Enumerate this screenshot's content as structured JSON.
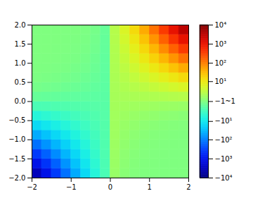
{
  "chart_data": {
    "type": "heatmap",
    "x": [
      -1.875,
      -1.625,
      -1.375,
      -1.125,
      -0.875,
      -0.625,
      -0.375,
      -0.125,
      0.125,
      0.375,
      0.625,
      0.875,
      1.125,
      1.375,
      1.625,
      1.875
    ],
    "y": [
      -1.875,
      -1.625,
      -1.375,
      -1.125,
      -0.875,
      -0.625,
      -0.375,
      -0.125,
      0.125,
      0.375,
      0.625,
      0.875,
      1.125,
      1.375,
      1.625,
      1.875
    ],
    "values": [
      [
        -3280,
        -1110,
        -378,
        -129,
        -43.7,
        -14.9,
        -5.05,
        -1.72,
        0.58,
        0.2,
        0.067,
        0.023,
        0.0078,
        0.0026,
        0.0009,
        0.0003
      ],
      [
        -1110,
        -437,
        -171,
        -67.3,
        -26.4,
        -10.4,
        -4.07,
        -1.6,
        0.63,
        0.25,
        0.096,
        0.038,
        0.015,
        0.0058,
        0.0023,
        0.0009
      ],
      [
        -378,
        -171,
        -77.8,
        -35.2,
        -16,
        -7.23,
        -3.28,
        -1.49,
        0.67,
        0.3,
        0.14,
        0.063,
        0.028,
        0.013,
        0.0058,
        0.0026
      ],
      [
        -129,
        -67.3,
        -35.2,
        -18.4,
        -9.65,
        -5.05,
        -2.64,
        -1.38,
        0.72,
        0.38,
        0.2,
        0.1,
        0.054,
        0.028,
        0.015,
        0.0078
      ],
      [
        -43.7,
        -26.4,
        -16,
        -9.65,
        -5.83,
        -3.52,
        -2.13,
        -1.29,
        0.78,
        0.47,
        0.28,
        0.17,
        0.1,
        0.063,
        0.038,
        0.023
      ],
      [
        -14.9,
        -10.4,
        -7.23,
        -5.05,
        -3.52,
        -2.46,
        -1.72,
        -1.2,
        0.83,
        0.58,
        0.41,
        0.28,
        0.2,
        0.14,
        0.096,
        0.067
      ],
      [
        -5.05,
        -4.07,
        -3.28,
        -2.64,
        -2.13,
        -1.72,
        -1.38,
        -1.11,
        0.9,
        0.72,
        0.58,
        0.47,
        0.38,
        0.3,
        0.25,
        0.2
      ],
      [
        -1.72,
        -1.6,
        -1.49,
        -1.38,
        -1.29,
        -1.2,
        -1.11,
        -1.04,
        0.96,
        0.9,
        0.83,
        0.78,
        0.72,
        0.67,
        0.63,
        0.58
      ],
      [
        -0.58,
        -0.63,
        -0.67,
        -0.72,
        -0.78,
        -0.83,
        -0.9,
        -0.96,
        1.04,
        1.11,
        1.2,
        1.29,
        1.38,
        1.49,
        1.6,
        1.72
      ],
      [
        -0.2,
        -0.25,
        -0.3,
        -0.38,
        -0.47,
        -0.58,
        -0.72,
        -0.9,
        1.11,
        1.38,
        1.72,
        2.13,
        2.64,
        3.28,
        4.07,
        5.05
      ],
      [
        -0.067,
        -0.096,
        -0.14,
        -0.2,
        -0.28,
        -0.41,
        -0.58,
        -0.83,
        1.2,
        1.72,
        2.46,
        3.52,
        5.05,
        7.23,
        10.4,
        14.9
      ],
      [
        -0.023,
        -0.038,
        -0.063,
        -0.1,
        -0.17,
        -0.28,
        -0.47,
        -0.78,
        1.29,
        2.13,
        3.52,
        5.83,
        9.65,
        16,
        26.4,
        43.7
      ],
      [
        -0.0078,
        -0.015,
        -0.028,
        -0.054,
        -0.1,
        -0.2,
        -0.38,
        -0.72,
        1.38,
        2.64,
        5.05,
        9.65,
        18.4,
        35.2,
        67.3,
        129
      ],
      [
        -0.0026,
        -0.0058,
        -0.013,
        -0.028,
        -0.063,
        -0.14,
        -0.3,
        -0.67,
        1.49,
        3.28,
        7.23,
        16,
        35.2,
        77.8,
        171,
        378
      ],
      [
        -0.0009,
        -0.0023,
        -0.0058,
        -0.015,
        -0.038,
        -0.096,
        -0.25,
        -0.63,
        1.6,
        4.07,
        10.4,
        26.4,
        67.3,
        171,
        437,
        1110
      ],
      [
        -0.0003,
        -0.0009,
        -0.0026,
        -0.0078,
        -0.023,
        -0.067,
        -0.2,
        -0.58,
        1.72,
        5.05,
        14.9,
        43.7,
        129,
        378,
        1110,
        3280
      ]
    ],
    "xlim": [
      -2,
      2
    ],
    "ylim": [
      -2,
      2
    ],
    "xticks": [
      {
        "value": -2,
        "label": "−2"
      },
      {
        "value": -1,
        "label": "−1"
      },
      0,
      1,
      2
    ],
    "yticks": [
      {
        "value": -2,
        "label": "−2.0"
      },
      {
        "value": -1.5,
        "label": "−1.5"
      },
      {
        "value": -1,
        "label": "−1.0"
      },
      {
        "value": -0.5,
        "label": "−0.5"
      },
      {
        "value": 0,
        "label": "0.0"
      },
      {
        "value": 0.5,
        "label": "0.5"
      },
      {
        "value": 1,
        "label": "1.0"
      },
      {
        "value": 1.5,
        "label": "1.5"
      },
      {
        "value": 2,
        "label": "2.0"
      }
    ],
    "colorbar": {
      "range": [
        -10000,
        10000
      ],
      "log": true,
      "ticks": [
        {
          "value": 10000,
          "label": "10⁴"
        },
        {
          "value": 1000,
          "label": "10³"
        },
        {
          "value": 100,
          "label": "10²"
        },
        {
          "value": 10,
          "label": "10¹"
        },
        {
          "value": 0,
          "label": "−1~1"
        },
        {
          "value": -10,
          "label": "−10¹"
        },
        {
          "value": -100,
          "label": "−10²"
        },
        {
          "value": -1000,
          "label": "−10³"
        },
        {
          "value": -10000,
          "label": "−10⁴"
        }
      ]
    }
  }
}
